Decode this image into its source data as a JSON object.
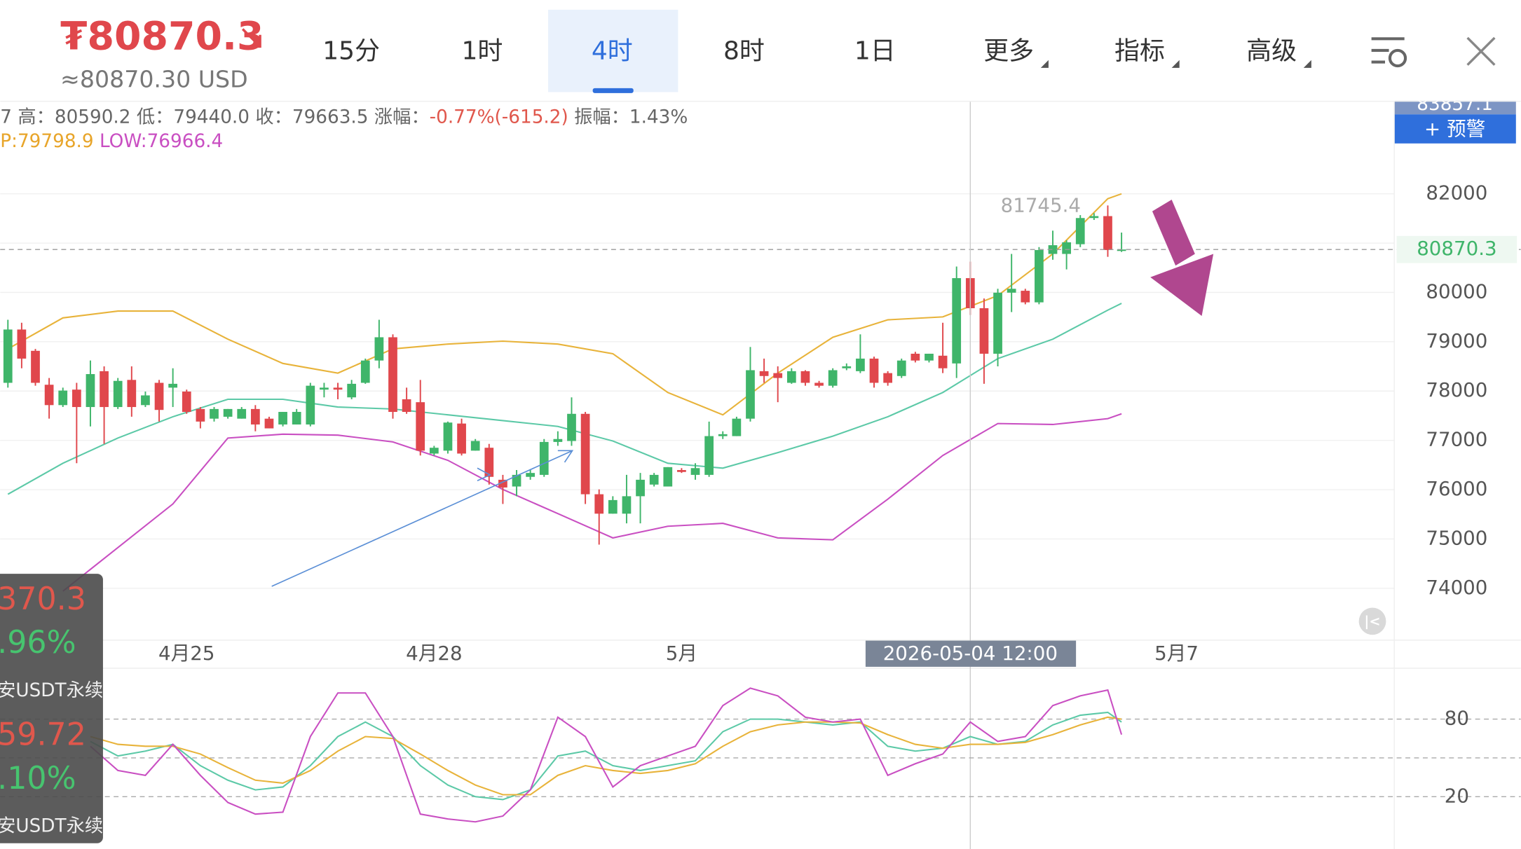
{
  "header": {
    "price": "₮80870.3",
    "usd": "≈80870.30 USD"
  },
  "tabs": [
    "15分",
    "1时",
    "4时",
    "8时",
    "1日",
    "更多",
    "指标",
    "高级"
  ],
  "info": {
    "line1": [
      "7 高：80590.2 低：79440.0 收：79663.5 涨幅：",
      "-0.77%(-615.2)",
      " 振幅：1.43%"
    ],
    "line2": [
      "P:79798.9",
      " LOW:76966.4"
    ]
  },
  "alert_button": "+ 预警",
  "top_price_label": "83857.1",
  "overlay": [
    "370.3",
    ".96%",
    "安USDT永续",
    "59.72",
    ".10%",
    "安USDT永续"
  ],
  "chart_data": [
    {
      "type": "candlestick",
      "up_color": "#3fb56a",
      "down_color": "#e0474c",
      "xlim": [
        -0.56,
        100.8
      ],
      "ylim": [
        72958,
        83867
      ],
      "yticks": [
        74000,
        75000,
        76000,
        77000,
        78000,
        79000,
        80000,
        81000,
        82000
      ],
      "ytick_labels_shown": [
        74000,
        75000,
        76000,
        77000,
        78000,
        79000,
        80000,
        82000
      ],
      "xticks": [
        {
          "value": 13,
          "label": "4月25"
        },
        {
          "value": 31,
          "label": "4月28"
        },
        {
          "value": 49,
          "label": "5月"
        },
        {
          "value": 85,
          "label": "5月7"
        }
      ],
      "grid": true,
      "last_price": 80870.3,
      "high_marker": 81745.4,
      "crosshair": {
        "x": 70,
        "label": "2026-05-04 12:00"
      },
      "x": [
        0,
        1,
        2,
        3,
        4,
        5,
        6,
        7,
        8,
        9,
        10,
        11,
        12,
        13,
        14,
        15,
        16,
        17,
        18,
        19,
        20,
        21,
        22,
        23,
        24,
        25,
        26,
        27,
        28,
        29,
        30,
        31,
        32,
        33,
        34,
        35,
        36,
        37,
        38,
        39,
        40,
        41,
        42,
        43,
        44,
        45,
        46,
        47,
        48,
        49,
        50,
        51,
        52,
        53,
        54,
        55,
        56,
        57,
        58,
        59,
        60,
        61,
        62,
        63,
        64,
        65,
        66,
        67,
        68,
        69,
        70,
        71,
        72,
        73,
        74,
        75,
        76,
        77,
        78,
        79,
        80,
        81
      ],
      "ohlc": [
        [
          78167,
          79445,
          78069,
          79248
        ],
        [
          79248,
          79386,
          78462,
          78658
        ],
        [
          78816,
          78855,
          78108,
          78167
        ],
        [
          78128,
          78265,
          77440,
          77715
        ],
        [
          77715,
          78069,
          77676,
          78010
        ],
        [
          78029,
          78167,
          76536,
          77676
        ],
        [
          77676,
          78619,
          77283,
          78344
        ],
        [
          78403,
          78501,
          76928,
          77676
        ],
        [
          77676,
          78265,
          77636,
          78206
        ],
        [
          78226,
          78501,
          77479,
          77676
        ],
        [
          77715,
          77990,
          77676,
          77912
        ],
        [
          78167,
          78226,
          77381,
          77617
        ],
        [
          78069,
          78462,
          77676,
          78147
        ],
        [
          77990,
          78029,
          77538,
          77577
        ],
        [
          77636,
          77676,
          77243,
          77381
        ],
        [
          77440,
          77676,
          77381,
          77636
        ],
        [
          77479,
          77636,
          77440,
          77636
        ],
        [
          77440,
          77676,
          77440,
          77636
        ],
        [
          77636,
          77715,
          77184,
          77322
        ],
        [
          77440,
          77479,
          77243,
          77243
        ],
        [
          77322,
          77577,
          77283,
          77577
        ],
        [
          77322,
          77636,
          77322,
          77577
        ],
        [
          77322,
          78167,
          77283,
          78108
        ],
        [
          78029,
          78167,
          77872,
          78069
        ],
        [
          78069,
          78167,
          77833,
          78029
        ],
        [
          77872,
          78226,
          77833,
          78147
        ],
        [
          78167,
          78658,
          78147,
          78619
        ],
        [
          78619,
          79445,
          78462,
          79091
        ],
        [
          79091,
          79150,
          77440,
          77577
        ],
        [
          77833,
          78069,
          77538,
          77577
        ],
        [
          77774,
          78226,
          76693,
          76791
        ],
        [
          76732,
          76889,
          76693,
          76850
        ],
        [
          76791,
          77381,
          76732,
          77361
        ],
        [
          77341,
          77440,
          76693,
          76732
        ],
        [
          76791,
          77027,
          76791,
          76987
        ],
        [
          76850,
          76928,
          76103,
          76260
        ],
        [
          76201,
          76300,
          75710,
          76044
        ],
        [
          76064,
          76398,
          75867,
          76300
        ],
        [
          76260,
          76398,
          76201,
          76339
        ],
        [
          76300,
          77027,
          76260,
          76968
        ],
        [
          76968,
          77184,
          76889,
          77027
        ],
        [
          76987,
          77872,
          76889,
          77538
        ],
        [
          77538,
          77577,
          75710,
          75907
        ],
        [
          75907,
          76005,
          74885,
          75513
        ],
        [
          75513,
          75867,
          75513,
          75789
        ],
        [
          75513,
          76300,
          75317,
          75867
        ],
        [
          75867,
          76339,
          75317,
          76201
        ],
        [
          76103,
          76339,
          76064,
          76300
        ],
        [
          76064,
          76457,
          76064,
          76457
        ],
        [
          76398,
          76437,
          76339,
          76359
        ],
        [
          76300,
          76536,
          76201,
          76437
        ],
        [
          76300,
          77381,
          76260,
          77086
        ],
        [
          77086,
          77184,
          77027,
          77125
        ],
        [
          77086,
          77479,
          77086,
          77440
        ],
        [
          77440,
          78894,
          77381,
          78423
        ],
        [
          78403,
          78658,
          78167,
          78305
        ],
        [
          78364,
          78501,
          77774,
          78265
        ],
        [
          78167,
          78462,
          78147,
          78403
        ],
        [
          78403,
          78423,
          78108,
          78167
        ],
        [
          78167,
          78206,
          78069,
          78108
        ],
        [
          78108,
          78462,
          78069,
          78423
        ],
        [
          78462,
          78560,
          78423,
          78501
        ],
        [
          78403,
          79150,
          78364,
          78658
        ],
        [
          78658,
          78698,
          78069,
          78167
        ],
        [
          78364,
          78403,
          78108,
          78167
        ],
        [
          78305,
          78658,
          78265,
          78619
        ],
        [
          78757,
          78796,
          78580,
          78619
        ],
        [
          78619,
          78757,
          78580,
          78757
        ],
        [
          78717,
          79386,
          78364,
          78462
        ],
        [
          78560,
          80526,
          78265,
          80290
        ],
        [
          80290,
          80624,
          79543,
          79680
        ],
        [
          79680,
          79877,
          78147,
          78757
        ],
        [
          78757,
          80074,
          78501,
          79995
        ],
        [
          79995,
          80781,
          79602,
          80074
        ],
        [
          80034,
          80074,
          79759,
          79799
        ],
        [
          79799,
          80919,
          79759,
          80860
        ],
        [
          80781,
          81253,
          80663,
          80958
        ],
        [
          80781,
          81057,
          80467,
          81017
        ],
        [
          80978,
          81568,
          80919,
          81509
        ],
        [
          81509,
          81607,
          81470,
          81548
        ],
        [
          81548,
          81764,
          80722,
          80860
        ],
        [
          80860,
          81214,
          80821,
          80870.3
        ]
      ],
      "series": [
        {
          "color": "#e8b33a",
          "x": [
            0,
            4,
            8,
            12,
            16,
            20,
            24,
            28,
            32,
            36,
            40,
            44,
            48,
            52,
            56,
            60,
            64,
            68,
            72,
            76,
            80,
            81
          ],
          "values": [
            78855,
            79484,
            79622,
            79622,
            79052,
            78560,
            78364,
            78855,
            78953,
            79012,
            78953,
            78757,
            77971,
            77518,
            78364,
            79091,
            79445,
            79504,
            79936,
            80781,
            81902,
            82000
          ]
        },
        {
          "color": "#5cc9a7",
          "x": [
            0,
            4,
            8,
            12,
            16,
            20,
            24,
            28,
            32,
            36,
            40,
            44,
            48,
            52,
            56,
            60,
            64,
            68,
            72,
            76,
            80,
            81
          ],
          "values": [
            75907,
            76536,
            77047,
            77479,
            77833,
            77833,
            77676,
            77636,
            77518,
            77401,
            77283,
            76987,
            76536,
            76437,
            76752,
            77086,
            77479,
            77971,
            78658,
            79052,
            79641,
            79779
          ]
        },
        {
          "color": "#c94fc2",
          "x": [
            4,
            8,
            12,
            16,
            20,
            24,
            28,
            32,
            36,
            40,
            44,
            48,
            52,
            56,
            60,
            64,
            68,
            72,
            76,
            80,
            81
          ],
          "values": [
            73941,
            74826,
            75710,
            77047,
            77125,
            77106,
            76968,
            76595,
            76005,
            75514,
            75022,
            75258,
            75317,
            75022,
            74983,
            75808,
            76693,
            77341,
            77322,
            77440,
            77538
          ]
        }
      ]
    },
    {
      "type": "line",
      "xlim": [
        -0.56,
        100.8
      ],
      "ylim": [
        -20.5,
        119
      ],
      "yticks": [
        20,
        80
      ],
      "reference_lines": [
        20,
        50,
        80
      ],
      "x": [
        6,
        8,
        10,
        12,
        14,
        16,
        18,
        20,
        22,
        24,
        26,
        28,
        30,
        32,
        34,
        36,
        38,
        40,
        42,
        44,
        46,
        48,
        50,
        52,
        54,
        56,
        58,
        60,
        62,
        64,
        66,
        68,
        70,
        72,
        74,
        76,
        78,
        80,
        81
      ],
      "series": [
        {
          "color": "#5cc9a7",
          "values": [
            62.75,
            51.5,
            55.25,
            60.5,
            44,
            32.75,
            25.25,
            27.5,
            44,
            66.5,
            77.75,
            66.5,
            44,
            29,
            20,
            17.75,
            25.25,
            51.5,
            55.25,
            44,
            40.25,
            44,
            47.75,
            70.25,
            80,
            80,
            77.75,
            75.5,
            77.75,
            59,
            55.25,
            57.5,
            66.5,
            60.5,
            62.75,
            75.5,
            83,
            85.25,
            77.75
          ]
        },
        {
          "color": "#e8b33a",
          "values": [
            66.5,
            60.5,
            59,
            59,
            53,
            42.5,
            32.75,
            30.5,
            40.25,
            55.25,
            66.5,
            65,
            53,
            40.25,
            29,
            21.5,
            21.5,
            36.5,
            44,
            40.25,
            38,
            40.25,
            45.5,
            59,
            70.25,
            75.5,
            77.75,
            77.75,
            77,
            68,
            60.5,
            57.5,
            60.5,
            60.5,
            62,
            68,
            75.5,
            81.5,
            80
          ]
        },
        {
          "color": "#c94fc2",
          "values": [
            59,
            40.25,
            36.5,
            60.5,
            36.5,
            15.5,
            6.5,
            8,
            66.5,
            100.25,
            100.25,
            66.5,
            6.5,
            2.75,
            0.5,
            5,
            25.25,
            81.5,
            66.5,
            27.5,
            44,
            51.5,
            59,
            90.5,
            104,
            98,
            81.5,
            77.75,
            80,
            36.5,
            45.5,
            53,
            77.75,
            62.75,
            66.5,
            90.5,
            98,
            102.5,
            68
          ]
        }
      ]
    }
  ]
}
